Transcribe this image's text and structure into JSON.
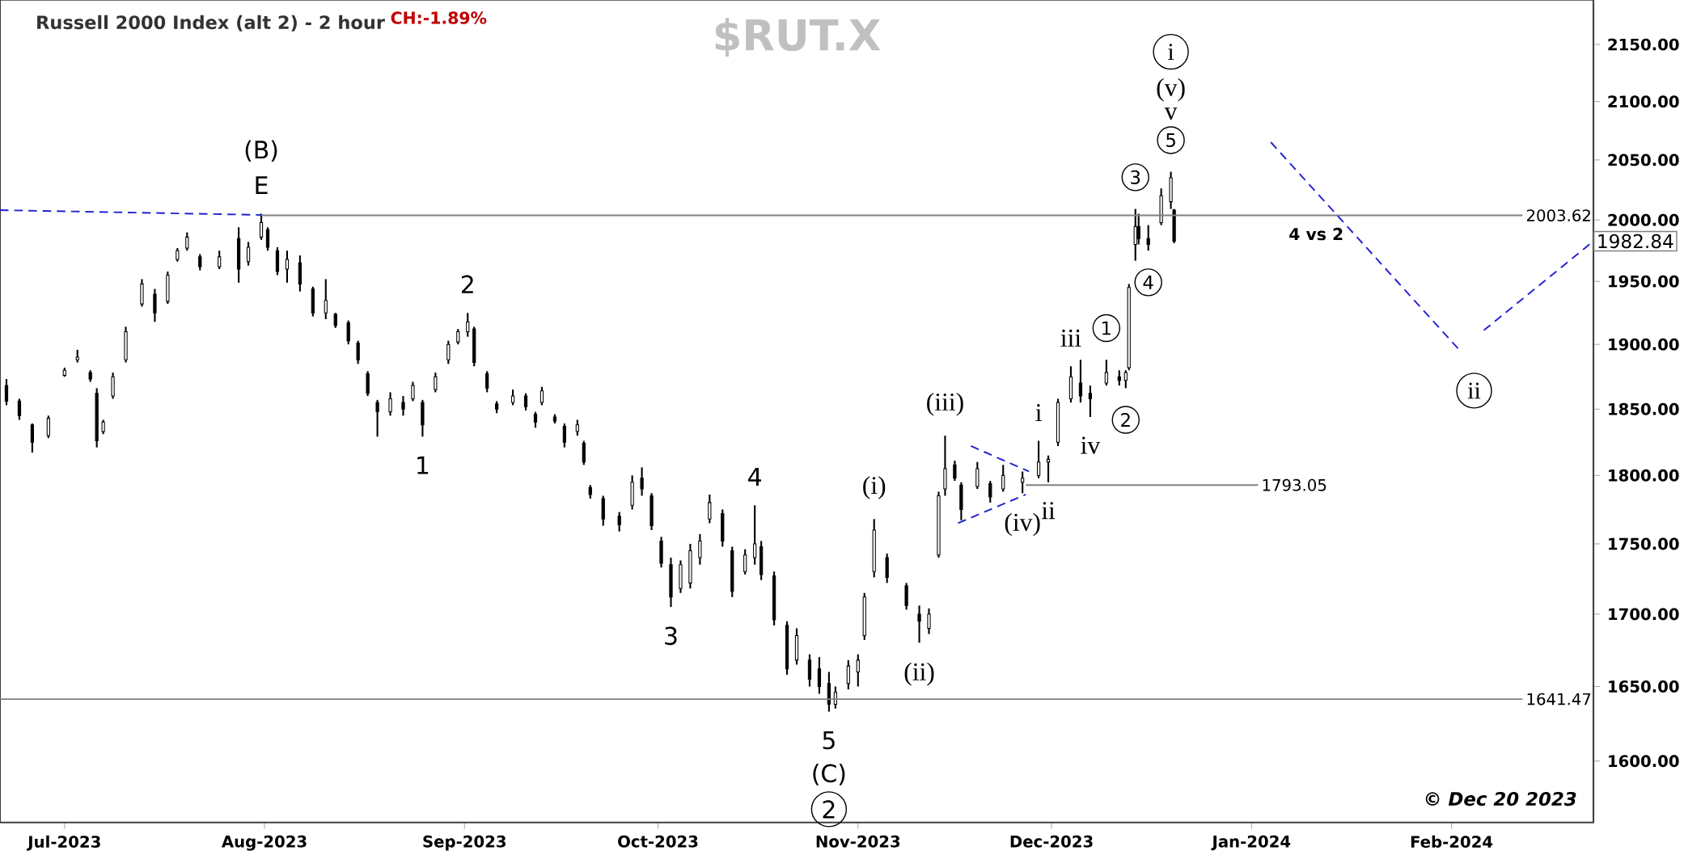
{
  "chart_data": {
    "type": "candlestick",
    "title": "Russell 2000 Index (alt 2) - 2 hour",
    "subtitle": "CH:-1.89%",
    "color": "#000000",
    "log": true,
    "xlim": [
      "2023-06-21",
      "2024-02-23"
    ],
    "ylim": [
      1560,
      2190
    ],
    "xticks": [
      {
        "value": "2023-07-01",
        "label": "Jul-2023"
      },
      {
        "value": "2023-08-01",
        "label": "Aug-2023"
      },
      {
        "value": "2023-09-01",
        "label": "Sep-2023"
      },
      {
        "value": "2023-10-01",
        "label": "Oct-2023"
      },
      {
        "value": "2023-11-01",
        "label": "Nov-2023"
      },
      {
        "value": "2023-12-01",
        "label": "Dec-2023"
      },
      {
        "value": "2024-01-01",
        "label": "Jan-2024"
      },
      {
        "value": "2024-02-01",
        "label": "Feb-2024"
      }
    ],
    "yticks": [
      {
        "value": 1600,
        "label": "1600.00"
      },
      {
        "value": 1650,
        "label": "1650.00"
      },
      {
        "value": 1700,
        "label": "1700.00"
      },
      {
        "value": 1750,
        "label": "1750.00"
      },
      {
        "value": 1800,
        "label": "1800.00"
      },
      {
        "value": 1850,
        "label": "1850.00"
      },
      {
        "value": 1900,
        "label": "1900.00"
      },
      {
        "value": 1950,
        "label": "1950.00"
      },
      {
        "value": 2000,
        "label": "2000.00"
      },
      {
        "value": 2050,
        "label": "2050.00"
      },
      {
        "value": 2100,
        "label": "2100.00"
      },
      {
        "value": 2150,
        "label": "2150.00"
      }
    ],
    "x": [
      "2023-06-22",
      "2023-06-24",
      "2023-06-26",
      "2023-06-28T12:00",
      "2023-07-01",
      "2023-07-03",
      "2023-07-05",
      "2023-07-06",
      "2023-07-07",
      "2023-07-08T12:00",
      "2023-07-10T12:00",
      "2023-07-13",
      "2023-07-15",
      "2023-07-17",
      "2023-07-18T12:00",
      "2023-07-20",
      "2023-07-22",
      "2023-07-25",
      "2023-07-28",
      "2023-07-29T12:00",
      "2023-07-31T12:00",
      "2023-08-01T12:00",
      "2023-08-03",
      "2023-08-04T12:00",
      "2023-08-06T12:00",
      "2023-08-08T12:00",
      "2023-08-10T12:00",
      "2023-08-12",
      "2023-08-14",
      "2023-08-15T12:00",
      "2023-08-17",
      "2023-08-18T12:00",
      "2023-08-20T12:00",
      "2023-08-22T12:00",
      "2023-08-24",
      "2023-08-25T12:00",
      "2023-08-27T12:00",
      "2023-08-29T12:00",
      "2023-08-31",
      "2023-09-01T12:00",
      "2023-09-02T12:00",
      "2023-09-04T12:00",
      "2023-09-06",
      "2023-09-08T12:00",
      "2023-09-10T12:00",
      "2023-09-12",
      "2023-09-13",
      "2023-09-15",
      "2023-09-16T12:00",
      "2023-09-18T12:00",
      "2023-09-19T12:00",
      "2023-09-20T12:00",
      "2023-09-22T12:00",
      "2023-09-25",
      "2023-09-27",
      "2023-09-28T12:00",
      "2023-09-30",
      "2023-10-01T12:00",
      "2023-10-03",
      "2023-10-04T12:00",
      "2023-10-06",
      "2023-10-07T12:00",
      "2023-10-09",
      "2023-10-11",
      "2023-10-12T12:00",
      "2023-10-14T12:00",
      "2023-10-16",
      "2023-10-17",
      "2023-10-19",
      "2023-10-21",
      "2023-10-22T12:00",
      "2023-10-24T12:00",
      "2023-10-26",
      "2023-10-27T12:00",
      "2023-10-28T12:00",
      "2023-10-30T12:00",
      "2023-11-01",
      "2023-11-02",
      "2023-11-03T12:00",
      "2023-11-05T12:00",
      "2023-11-08T12:00",
      "2023-11-10T12:00",
      "2023-11-12",
      "2023-11-13T12:00",
      "2023-11-14T12:00",
      "2023-11-16",
      "2023-11-17",
      "2023-11-19T12:00",
      "2023-11-21T12:00",
      "2023-11-23T12:00",
      "2023-11-26T12:00",
      "2023-11-29",
      "2023-11-30T12:00",
      "2023-12-02",
      "2023-12-04",
      "2023-12-05T12:00",
      "2023-12-07",
      "2023-12-09T12:00",
      "2023-12-11T12:00",
      "2023-12-12T12:00",
      "2023-12-13",
      "2023-12-14",
      "2023-12-14T12:00",
      "2023-12-16",
      "2023-12-18",
      "2023-12-19T12:00",
      "2023-12-20"
    ],
    "ohlc": [
      [
        1868,
        1873,
        1853,
        1856
      ],
      [
        1856,
        1858,
        1842,
        1845
      ],
      [
        1838,
        1839,
        1817,
        1825
      ],
      [
        1830,
        1845,
        1828,
        1843
      ],
      [
        1876,
        1882,
        1875,
        1880
      ],
      [
        1888,
        1896,
        1886,
        1890
      ],
      [
        1878,
        1880,
        1871,
        1873
      ],
      [
        1862,
        1866,
        1821,
        1826
      ],
      [
        1833,
        1842,
        1831,
        1840
      ],
      [
        1860,
        1878,
        1858,
        1875
      ],
      [
        1888,
        1914,
        1886,
        1910
      ],
      [
        1932,
        1952,
        1930,
        1948
      ],
      [
        1940,
        1944,
        1918,
        1925
      ],
      [
        1934,
        1958,
        1932,
        1955
      ],
      [
        1968,
        1977,
        1966,
        1975
      ],
      [
        1977,
        1990,
        1975,
        1986
      ],
      [
        1970,
        1972,
        1959,
        1962
      ],
      [
        1962,
        1975,
        1960,
        1970
      ],
      [
        1985,
        1994,
        1949,
        1960
      ],
      [
        1966,
        1982,
        1963,
        1978
      ],
      [
        1986,
        2005,
        1984,
        1998
      ],
      [
        1992,
        1994,
        1975,
        1978
      ],
      [
        1975,
        1978,
        1955,
        1958
      ],
      [
        1960,
        1975,
        1949,
        1968
      ],
      [
        1965,
        1971,
        1942,
        1948
      ],
      [
        1944,
        1946,
        1922,
        1925
      ],
      [
        1925,
        1952,
        1920,
        1935
      ],
      [
        1924,
        1925,
        1913,
        1915
      ],
      [
        1917,
        1919,
        1900,
        1903
      ],
      [
        1901,
        1903,
        1885,
        1888
      ],
      [
        1877,
        1879,
        1860,
        1862
      ],
      [
        1855,
        1857,
        1829,
        1848
      ],
      [
        1848,
        1863,
        1845,
        1858
      ],
      [
        1855,
        1860,
        1845,
        1850
      ],
      [
        1858,
        1871,
        1856,
        1868
      ],
      [
        1855,
        1857,
        1829,
        1838
      ],
      [
        1865,
        1878,
        1863,
        1875
      ],
      [
        1888,
        1903,
        1885,
        1900
      ],
      [
        1902,
        1912,
        1900,
        1910
      ],
      [
        1910,
        1925,
        1906,
        1918
      ],
      [
        1912,
        1914,
        1883,
        1886
      ],
      [
        1877,
        1879,
        1863,
        1866
      ],
      [
        1854,
        1856,
        1847,
        1850
      ],
      [
        1855,
        1865,
        1853,
        1860
      ],
      [
        1860,
        1862,
        1849,
        1852
      ],
      [
        1846,
        1848,
        1836,
        1840
      ],
      [
        1855,
        1867,
        1853,
        1864
      ],
      [
        1844,
        1846,
        1839,
        1841
      ],
      [
        1837,
        1839,
        1821,
        1825
      ],
      [
        1833,
        1842,
        1830,
        1838
      ],
      [
        1824,
        1826,
        1808,
        1810
      ],
      [
        1791,
        1793,
        1783,
        1786
      ],
      [
        1783,
        1785,
        1763,
        1768
      ],
      [
        1770,
        1773,
        1759,
        1764
      ],
      [
        1778,
        1800,
        1775,
        1795
      ],
      [
        1798,
        1806,
        1785,
        1790
      ],
      [
        1785,
        1787,
        1760,
        1763
      ],
      [
        1752,
        1755,
        1733,
        1736
      ],
      [
        1735,
        1740,
        1705,
        1712
      ],
      [
        1718,
        1738,
        1715,
        1735
      ],
      [
        1722,
        1750,
        1718,
        1745
      ],
      [
        1740,
        1757,
        1735,
        1752
      ],
      [
        1768,
        1786,
        1765,
        1780
      ],
      [
        1772,
        1775,
        1748,
        1752
      ],
      [
        1745,
        1748,
        1712,
        1716
      ],
      [
        1730,
        1746,
        1728,
        1742
      ],
      [
        1740,
        1778,
        1735,
        1750
      ],
      [
        1748,
        1752,
        1724,
        1728
      ],
      [
        1727,
        1730,
        1692,
        1696
      ],
      [
        1692,
        1695,
        1658,
        1662
      ],
      [
        1668,
        1690,
        1665,
        1685
      ],
      [
        1668,
        1672,
        1650,
        1655
      ],
      [
        1662,
        1670,
        1645,
        1650
      ],
      [
        1652,
        1660,
        1633,
        1638
      ],
      [
        1638,
        1650,
        1635,
        1646
      ],
      [
        1652,
        1668,
        1648,
        1664
      ],
      [
        1660,
        1672,
        1650,
        1668
      ],
      [
        1685,
        1715,
        1682,
        1712
      ],
      [
        1730,
        1768,
        1726,
        1760
      ],
      [
        1740,
        1743,
        1722,
        1726
      ],
      [
        1720,
        1722,
        1703,
        1706
      ],
      [
        1700,
        1706,
        1680,
        1695
      ],
      [
        1690,
        1704,
        1686,
        1700
      ],
      [
        1742,
        1788,
        1740,
        1785
      ],
      [
        1790,
        1830,
        1785,
        1805
      ],
      [
        1808,
        1811,
        1796,
        1798
      ],
      [
        1793,
        1795,
        1767,
        1775
      ],
      [
        1792,
        1810,
        1790,
        1805
      ],
      [
        1794,
        1796,
        1780,
        1784
      ],
      [
        1790,
        1808,
        1788,
        1800
      ],
      [
        1795,
        1803,
        1787,
        1798
      ],
      [
        1800,
        1826,
        1798,
        1810
      ],
      [
        1810,
        1815,
        1795,
        1812
      ],
      [
        1825,
        1858,
        1822,
        1855
      ],
      [
        1858,
        1883,
        1855,
        1875
      ],
      [
        1870,
        1888,
        1855,
        1860
      ],
      [
        1862,
        1868,
        1844,
        1858
      ],
      [
        1870,
        1888,
        1868,
        1878
      ],
      [
        1875,
        1880,
        1868,
        1872
      ],
      [
        1872,
        1880,
        1866,
        1878
      ],
      [
        1882,
        1948,
        1880,
        1945
      ],
      [
        1980,
        2009,
        1967,
        1995
      ],
      [
        1995,
        2005,
        1980,
        1985
      ],
      [
        1985,
        1996,
        1975,
        1980
      ],
      [
        1998,
        2026,
        1996,
        2020
      ],
      [
        2015,
        2040,
        2009,
        2035
      ],
      [
        2008,
        2009,
        1981,
        1982.84
      ]
    ],
    "series": [
      {
        "type": "line",
        "name": "2003.62",
        "color": "#808080",
        "x": [
          "2023-07-31T12:00",
          "2024-02-12"
        ],
        "values": [
          2003.62,
          2003.62
        ]
      },
      {
        "type": "line",
        "name": "1793.05",
        "color": "#808080",
        "x": [
          "2023-11-27",
          "2024-01-02"
        ],
        "values": [
          1793.05,
          1793.05
        ]
      },
      {
        "type": "line",
        "name": "1641.47",
        "color": "#808080",
        "x": [
          "2023-06-21",
          "2024-02-12"
        ],
        "values": [
          1641.47,
          1641.47
        ]
      },
      {
        "type": "line",
        "color": "#2020d0",
        "line_style": "dashed",
        "x": [
          "2023-06-21",
          "2023-07-31T12:00"
        ],
        "values": [
          2008,
          2004
        ]
      },
      {
        "type": "line",
        "color": "#2020d0",
        "line_style": "dashed",
        "x": [
          "2023-11-18T12:00",
          "2023-11-27T12:00"
        ],
        "values": [
          1822,
          1803
        ]
      },
      {
        "type": "line",
        "color": "#2020d0",
        "line_style": "dashed",
        "x": [
          "2023-11-16T12:00",
          "2023-11-27"
        ],
        "values": [
          1765,
          1786
        ]
      },
      {
        "type": "line",
        "color": "#2020d0",
        "line_style": "dashed",
        "x": [
          "2024-01-04",
          "2024-02-02"
        ],
        "values": [
          2065,
          1897
        ]
      },
      {
        "type": "line",
        "color": "#2020d0",
        "line_style": "dashed",
        "x": [
          "2024-02-06",
          "2024-02-23"
        ],
        "values": [
          1911,
          1982.84
        ]
      }
    ],
    "annotations": [
      "$RUT.X",
      "© Dec 20 2023",
      "4 vs 2",
      "(v)",
      "i",
      "2",
      {
        "text": "E",
        "x": "2023-07-31T12:00",
        "y": 2005
      },
      {
        "text": "(B)",
        "x": "2023-07-31T12:00",
        "y": 2005
      },
      {
        "text": "2",
        "x": "2023-09-01T12:00",
        "y": 1925
      },
      {
        "text": "1",
        "x": "2023-08-25T12:00",
        "y": 1829
      },
      {
        "text": "3",
        "x": "2023-10-03",
        "y": 1705
      },
      {
        "text": "4",
        "x": "2023-10-16",
        "y": 1778
      },
      {
        "text": "5",
        "x": "2023-10-27T12:00",
        "y": 1633
      },
      {
        "text": "(C)",
        "x": "2023-10-27T12:00",
        "y": 1633
      },
      {
        "text": "(i)",
        "x": "2023-11-03T12:00",
        "y": 1768
      },
      {
        "text": "(ii)",
        "x": "2023-11-10T12:00",
        "y": 1680
      },
      {
        "text": "(iii)",
        "x": "2023-11-14T12:00",
        "y": 1830
      },
      {
        "text": "(iv)",
        "x": "2023-11-26T12:00",
        "y": 1787
      },
      {
        "text": "i",
        "x": "2023-11-29",
        "y": 1826
      },
      {
        "text": "ii",
        "x": "2023-11-30T12:00",
        "y": 1795
      },
      {
        "text": "iii",
        "x": "2023-12-04",
        "y": 1883
      },
      {
        "text": "iv",
        "x": "2023-12-07",
        "y": 1844
      },
      {
        "text": "1",
        "x": "2023-12-09T12:00",
        "y": 1888
      },
      {
        "text": "2",
        "x": "2023-12-12T12:00",
        "y": 1866
      },
      {
        "text": "3",
        "x": "2023-12-14",
        "y": 2009
      },
      {
        "text": "4",
        "x": "2023-12-16",
        "y": 1975
      },
      {
        "text": "5",
        "x": "2023-12-19T12:00",
        "y": 2040
      },
      {
        "text": "v",
        "x": "2023-12-19T12:00",
        "y": 2040
      },
      {
        "text": "ii",
        "x": "2024-02-02",
        "y": 1897
      },
      {
        "text": "1982.84",
        "x": "2024-02-23",
        "y": 1982.84
      }
    ]
  }
}
